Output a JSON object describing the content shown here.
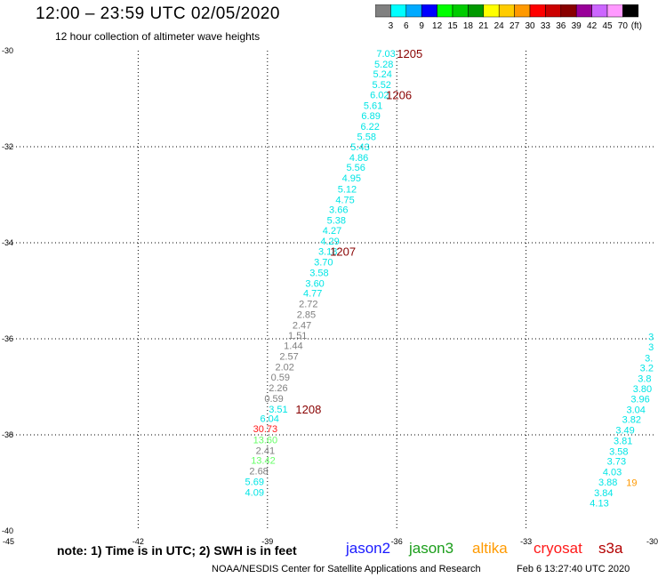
{
  "header": {
    "title": "12:00 – 23:59 UTC 02/05/2020",
    "subtitle": "12 hour collection of altimeter wave heights"
  },
  "color_scale": {
    "unit": "(ft)",
    "bins": [
      {
        "label": "3",
        "color": "#808080"
      },
      {
        "label": "6",
        "color": "#00ffff"
      },
      {
        "label": "9",
        "color": "#00aaff"
      },
      {
        "label": "12",
        "color": "#0000ff"
      },
      {
        "label": "15",
        "color": "#00ff00"
      },
      {
        "label": "18",
        "color": "#00cc00"
      },
      {
        "label": "21",
        "color": "#009900"
      },
      {
        "label": "24",
        "color": "#ffff00"
      },
      {
        "label": "27",
        "color": "#ffcc00"
      },
      {
        "label": "30",
        "color": "#ff9900"
      },
      {
        "label": "33",
        "color": "#ff0000"
      },
      {
        "label": "36",
        "color": "#cc0000"
      },
      {
        "label": "39",
        "color": "#880000"
      },
      {
        "label": "42",
        "color": "#990099"
      },
      {
        "label": "45",
        "color": "#cc66ff"
      },
      {
        "label": "70",
        "color": "#ff99ff"
      },
      {
        "label": "",
        "color": "#000000"
      }
    ]
  },
  "chart_data": {
    "type": "scatter",
    "title": "12:00 – 23:59 UTC 02/05/2020",
    "subtitle": "12 hour collection of altimeter wave heights",
    "xlim": [
      -45,
      -30
    ],
    "ylim": [
      -40,
      -30
    ],
    "grid": true,
    "x_ticks": [
      "-45",
      "-42",
      "-39",
      "-36",
      "-33",
      "-30"
    ],
    "y_ticks": [
      "-30",
      "-32",
      "-34",
      "-36",
      "-38",
      "-40"
    ],
    "points": [
      {
        "lon": -36.25,
        "lat": -30.06,
        "v": "7.03",
        "color": "#00e5e5"
      },
      {
        "lon": -36.3,
        "lat": -30.28,
        "v": "5.28",
        "color": "#00e5e5"
      },
      {
        "lon": -36.33,
        "lat": -30.48,
        "v": "5.24",
        "color": "#00e5e5"
      },
      {
        "lon": -36.35,
        "lat": -30.7,
        "v": "5.52",
        "color": "#00e5e5"
      },
      {
        "lon": -36.4,
        "lat": -30.92,
        "v": "6.02",
        "color": "#00e5e5"
      },
      {
        "lon": -36.55,
        "lat": -31.14,
        "v": "5.61",
        "color": "#00e5e5"
      },
      {
        "lon": -36.6,
        "lat": -31.35,
        "v": "6.89",
        "color": "#00e5e5"
      },
      {
        "lon": -36.62,
        "lat": -31.57,
        "v": "6.22",
        "color": "#00e5e5"
      },
      {
        "lon": -36.7,
        "lat": -31.79,
        "v": "5.58",
        "color": "#00e5e5"
      },
      {
        "lon": -36.85,
        "lat": -32.0,
        "v": "5.43",
        "color": "#00e5e5"
      },
      {
        "lon": -36.88,
        "lat": -32.22,
        "v": "4.86",
        "color": "#00e5e5"
      },
      {
        "lon": -36.95,
        "lat": -32.43,
        "v": "5.56",
        "color": "#00e5e5"
      },
      {
        "lon": -37.05,
        "lat": -32.65,
        "v": "4.95",
        "color": "#00e5e5"
      },
      {
        "lon": -37.15,
        "lat": -32.88,
        "v": "5.12",
        "color": "#00e5e5"
      },
      {
        "lon": -37.2,
        "lat": -33.1,
        "v": "4.75",
        "color": "#00e5e5"
      },
      {
        "lon": -37.35,
        "lat": -33.31,
        "v": "3.66",
        "color": "#00e5e5"
      },
      {
        "lon": -37.4,
        "lat": -33.53,
        "v": "5.38",
        "color": "#00e5e5"
      },
      {
        "lon": -37.5,
        "lat": -33.74,
        "v": "4.27",
        "color": "#00e5e5"
      },
      {
        "lon": -37.55,
        "lat": -33.96,
        "v": "4.29",
        "color": "#00e5e5"
      },
      {
        "lon": -37.6,
        "lat": -34.18,
        "v": "3.18",
        "color": "#00e5e5"
      },
      {
        "lon": -37.7,
        "lat": -34.4,
        "v": "3.70",
        "color": "#00e5e5"
      },
      {
        "lon": -37.8,
        "lat": -34.62,
        "v": "3.58",
        "color": "#00e5e5"
      },
      {
        "lon": -37.9,
        "lat": -34.84,
        "v": "3.60",
        "color": "#00e5e5"
      },
      {
        "lon": -37.95,
        "lat": -35.05,
        "v": "4.77",
        "color": "#00e5e5"
      },
      {
        "lon": -38.05,
        "lat": -35.27,
        "v": "2.72",
        "color": "#808080"
      },
      {
        "lon": -38.1,
        "lat": -35.49,
        "v": "2.85",
        "color": "#808080"
      },
      {
        "lon": -38.2,
        "lat": -35.71,
        "v": "2.47",
        "color": "#808080"
      },
      {
        "lon": -38.3,
        "lat": -35.93,
        "v": "1.51",
        "color": "#808080"
      },
      {
        "lon": -38.4,
        "lat": -36.14,
        "v": "1.44",
        "color": "#808080"
      },
      {
        "lon": -38.5,
        "lat": -36.36,
        "v": "2.57",
        "color": "#808080"
      },
      {
        "lon": -38.6,
        "lat": -36.58,
        "v": "2.02",
        "color": "#808080"
      },
      {
        "lon": -38.7,
        "lat": -36.8,
        "v": "0.59",
        "color": "#808080"
      },
      {
        "lon": -38.75,
        "lat": -37.02,
        "v": "2.26",
        "color": "#808080"
      },
      {
        "lon": -38.85,
        "lat": -37.24,
        "v": "0.59",
        "color": "#808080"
      },
      {
        "lon": -38.75,
        "lat": -37.46,
        "v": "3.51",
        "color": "#00e5e5"
      },
      {
        "lon": -38.95,
        "lat": -37.66,
        "v": "6.04",
        "color": "#00e5e5"
      },
      {
        "lon": -39.05,
        "lat": -37.87,
        "v": "30.73",
        "color": "#ff1a1a"
      },
      {
        "lon": -39.05,
        "lat": -38.1,
        "v": "13.60",
        "color": "#66ff66"
      },
      {
        "lon": -39.05,
        "lat": -38.32,
        "v": "2.41",
        "color": "#808080"
      },
      {
        "lon": -39.1,
        "lat": -38.53,
        "v": "13.42",
        "color": "#66ff66"
      },
      {
        "lon": -39.2,
        "lat": -38.75,
        "v": "2.68",
        "color": "#808080"
      },
      {
        "lon": -39.3,
        "lat": -38.97,
        "v": "5.69",
        "color": "#00e5e5"
      },
      {
        "lon": -39.3,
        "lat": -39.19,
        "v": "4.09",
        "color": "#00e5e5"
      },
      {
        "lon": -30.1,
        "lat": -35.95,
        "v": "3",
        "color": "#00e5e5"
      },
      {
        "lon": -30.1,
        "lat": -36.17,
        "v": "3",
        "color": "#00e5e5"
      },
      {
        "lon": -30.15,
        "lat": -36.4,
        "v": "3.",
        "color": "#00e5e5"
      },
      {
        "lon": -30.2,
        "lat": -36.6,
        "v": "3.2",
        "color": "#00e5e5"
      },
      {
        "lon": -30.25,
        "lat": -36.82,
        "v": "3.8",
        "color": "#00e5e5"
      },
      {
        "lon": -30.3,
        "lat": -37.04,
        "v": "3.80",
        "color": "#00e5e5"
      },
      {
        "lon": -30.35,
        "lat": -37.25,
        "v": "3.96",
        "color": "#00e5e5"
      },
      {
        "lon": -30.45,
        "lat": -37.47,
        "v": "3.04",
        "color": "#00e5e5"
      },
      {
        "lon": -30.55,
        "lat": -37.68,
        "v": "3.82",
        "color": "#00e5e5"
      },
      {
        "lon": -30.7,
        "lat": -37.9,
        "v": "3.49",
        "color": "#00e5e5"
      },
      {
        "lon": -30.75,
        "lat": -38.12,
        "v": "3.81",
        "color": "#00e5e5"
      },
      {
        "lon": -30.85,
        "lat": -38.34,
        "v": "3.58",
        "color": "#00e5e5"
      },
      {
        "lon": -30.9,
        "lat": -38.55,
        "v": "3.73",
        "color": "#00e5e5"
      },
      {
        "lon": -31.0,
        "lat": -38.77,
        "v": "4.03",
        "color": "#00e5e5"
      },
      {
        "lon": -31.1,
        "lat": -38.98,
        "v": "3.88",
        "color": "#00e5e5"
      },
      {
        "lon": -31.2,
        "lat": -39.2,
        "v": "3.84",
        "color": "#00e5e5"
      },
      {
        "lon": -31.3,
        "lat": -39.42,
        "v": "4.13",
        "color": "#00e5e5"
      },
      {
        "lon": -30.55,
        "lat": -38.99,
        "v": "19",
        "color": "#ff9900"
      }
    ],
    "time_labels": [
      {
        "lon": -35.7,
        "lat": -30.06,
        "v": "1205"
      },
      {
        "lon": -35.95,
        "lat": -30.92,
        "v": "1206"
      },
      {
        "lon": -37.25,
        "lat": -34.18,
        "v": "1207"
      },
      {
        "lon": -38.05,
        "lat": -37.46,
        "v": "1208"
      }
    ]
  },
  "footer": {
    "note": "note: 1) Time is in UTC; 2) SWH is in feet",
    "satellites": [
      "jason2",
      "jason3",
      "altika",
      "cryosat",
      "s3a"
    ],
    "credit": "NOAA/NESDIS Center for Satellite Applications and Research",
    "timestamp": "Feb  6 13:27:40 UTC 2020"
  }
}
